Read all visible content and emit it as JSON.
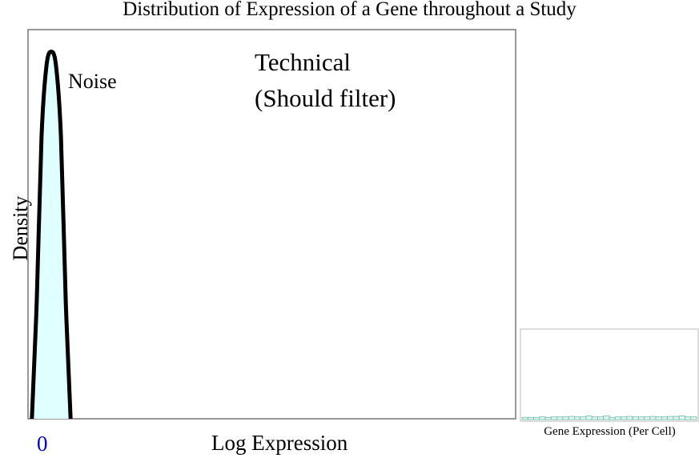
{
  "chart_data": [
    {
      "type": "line",
      "title": "Distribution of Expression of a Gene throughout a Study",
      "xlabel": "Log Expression",
      "ylabel": "Density",
      "x_ticks": [
        "0"
      ],
      "series": [
        {
          "name": "",
          "color": "#000000",
          "fill": "#e0ffff",
          "x": [
            -0.5,
            -0.375,
            -0.25,
            -0.125,
            0,
            0.125,
            0.25,
            0.375,
            0.5
          ],
          "y": [
            0.0,
            0.32,
            0.77,
            0.96,
            1.0,
            0.96,
            0.77,
            0.32,
            0.0
          ]
        }
      ],
      "xlim": [
        -0.6,
        12
      ],
      "ylim": [
        0,
        1.06
      ],
      "annotations": [
        {
          "text": "Noise"
        },
        {
          "lines": [
            "Technical",
            "(Should filter)"
          ]
        }
      ],
      "grid": false
    },
    {
      "type": "bar",
      "xlabel": "Gene Expression (Per Cell)",
      "values": [
        0.25,
        0.25,
        0.25,
        0.3,
        0.25,
        0.3,
        0.3,
        0.3,
        0.35,
        0.3,
        0.3,
        0.4,
        0.3,
        0.3,
        0.4,
        0.25,
        0.3,
        0.3,
        0.35,
        0.3,
        0.3,
        0.3,
        0.35,
        0.3,
        0.3,
        0.35,
        0.35,
        0.4,
        0.3,
        0.3
      ],
      "ylim": [
        0,
        10
      ],
      "color": "#66bbaa"
    }
  ]
}
